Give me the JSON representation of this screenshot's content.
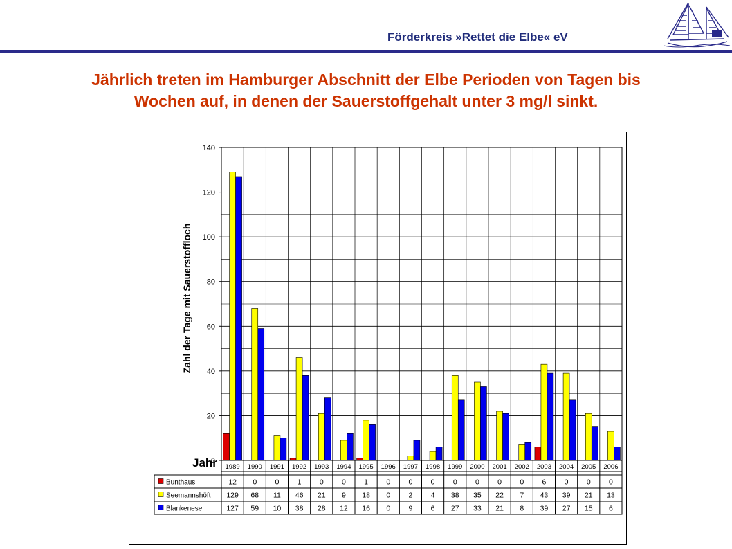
{
  "header": {
    "org_title": "Förderkreis »Rettet die Elbe« eV",
    "headline_line1": "Jährlich treten im Hamburger Abschnitt der Elbe Perioden von Tagen bis",
    "headline_line2": "Wochen auf, in denen der Sauerstoffgehalt unter 3 mg/l sinkt.",
    "logo_icon": "sailing-ship-icon"
  },
  "colors": {
    "headline": "#cc3300",
    "org_title": "#1f2b7a",
    "bunthaus": "#dd0000",
    "seemannshoeft": "#ffff00",
    "blankenese": "#0000ee"
  },
  "chart_data": {
    "type": "bar",
    "xlabel": "Jahr",
    "ylabel": "Zahl der Tage mit Sauerstoffloch",
    "ylim": [
      0,
      140
    ],
    "yticks": [
      0,
      20,
      40,
      60,
      80,
      100,
      120,
      140
    ],
    "grid": true,
    "legend": "data-table",
    "categories": [
      "1989",
      "1990",
      "1991",
      "1992",
      "1993",
      "1994",
      "1995",
      "1996",
      "1997",
      "1998",
      "1999",
      "2000",
      "2001",
      "2002",
      "2003",
      "2004",
      "2005",
      "2006"
    ],
    "series": [
      {
        "name": "Bunthaus",
        "color": "#dd0000",
        "values": [
          12,
          0,
          0,
          1,
          0,
          0,
          1,
          0,
          0,
          0,
          0,
          0,
          0,
          0,
          6,
          0,
          0,
          0
        ]
      },
      {
        "name": "Seemannshöft",
        "color": "#ffff00",
        "values": [
          129,
          68,
          11,
          46,
          21,
          9,
          18,
          0,
          2,
          4,
          38,
          35,
          22,
          7,
          43,
          39,
          21,
          13
        ]
      },
      {
        "name": "Blankenese",
        "color": "#0000ee",
        "values": [
          127,
          59,
          10,
          38,
          28,
          12,
          16,
          0,
          9,
          6,
          27,
          33,
          21,
          8,
          39,
          27,
          15,
          6
        ]
      }
    ]
  }
}
